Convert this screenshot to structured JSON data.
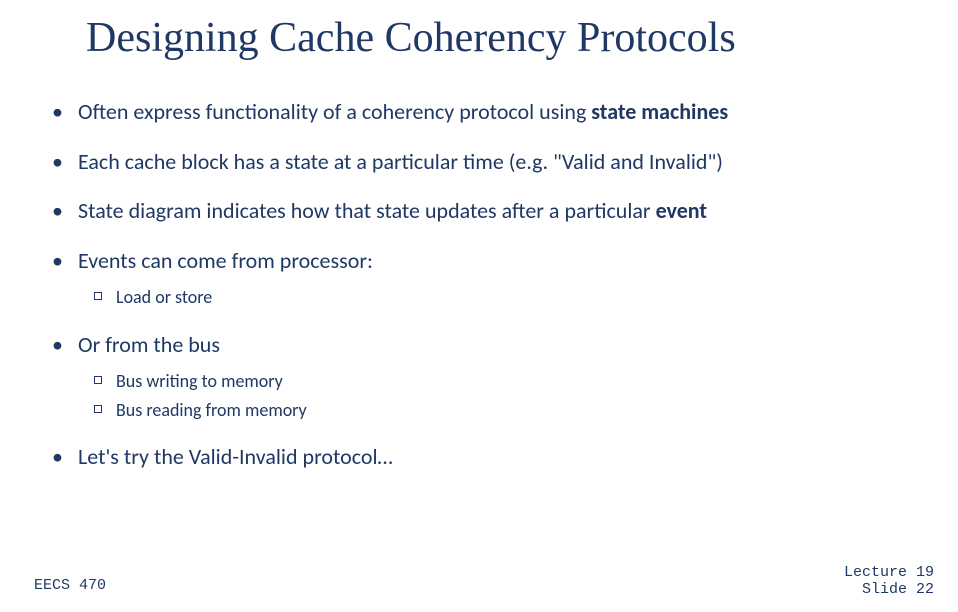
{
  "title": "Designing Cache Coherency Protocols",
  "bullets": {
    "b1_pre": "Often express functionality of a coherency protocol using ",
    "b1_bold": "state machines",
    "b2": "Each cache block has a state at a particular time (e.g. \"Valid and Invalid\")",
    "b3_pre": "State diagram indicates how that state updates after a particular ",
    "b3_bold": "event",
    "b4": "Events can come from processor:",
    "b4_sub1": "Load or store",
    "b5": "Or from the bus",
    "b5_sub1": "Bus writing to memory",
    "b5_sub2": "Bus reading from memory",
    "b6": "Let's try the Valid-Invalid protocol…"
  },
  "footer": {
    "left": "EECS 470",
    "right_line1": "Lecture 19",
    "right_line2": "Slide 22"
  },
  "colors": {
    "text": "#1f3864",
    "background": "#ffffff"
  },
  "fonts": {
    "title_family": "Comic Sans MS",
    "title_size_pt": 32,
    "body_family": "Calibri",
    "body_size_pt": 17,
    "sub_size_pt": 14,
    "footer_family": "Courier New",
    "footer_size_pt": 11
  }
}
